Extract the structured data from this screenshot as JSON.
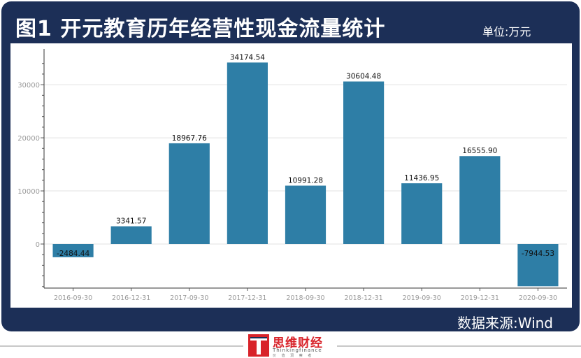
{
  "header": {
    "title": "图1 开元教育历年经营性现金流量统计",
    "unit": "单位:万元"
  },
  "footer": {
    "source": "数据来源:Wind",
    "logo_text": "思维财经",
    "logo_sub": "Thinkingfinance",
    "logo_motto": "价 值 洞 察 者"
  },
  "colors": {
    "frame": "#1c2f57",
    "bar": "#2e7ea6",
    "logo_red": "#d8232a"
  },
  "chart_data": {
    "type": "bar",
    "title": "图1 开元教育历年经营性现金流量统计",
    "xlabel": "",
    "ylabel": "",
    "categories": [
      "2016-09-30",
      "2016-12-31",
      "2017-09-30",
      "2017-12-31",
      "2018-09-30",
      "2018-12-31",
      "2019-09-30",
      "2019-12-31",
      "2020-09-30"
    ],
    "values": [
      -2484.44,
      3341.57,
      18967.76,
      34174.54,
      10991.28,
      30604.48,
      11436.95,
      16555.9,
      -7944.53
    ],
    "labels": [
      "-2484.44",
      "3341.57",
      "18967.76",
      "34174.54",
      "10991.28",
      "30604.48",
      "11436.95",
      "16555.90",
      "-7944.53"
    ],
    "ylim": [
      -8000,
      35000
    ],
    "yticks": [
      0,
      10000,
      20000,
      30000
    ],
    "grid": true,
    "legend": "none"
  }
}
